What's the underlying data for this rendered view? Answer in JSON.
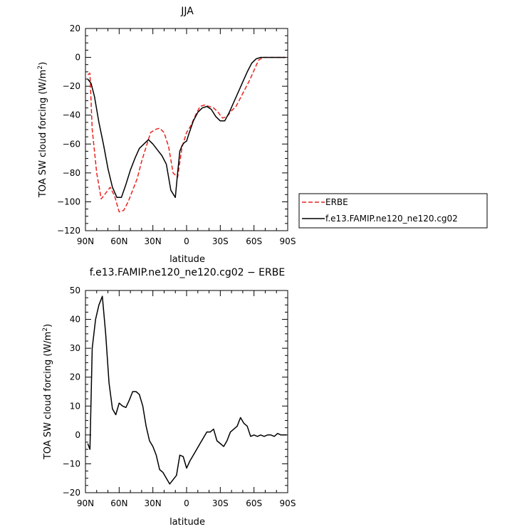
{
  "chart_data": [
    {
      "type": "line",
      "title": "JJA",
      "xlabel": "latitude",
      "ylabel_main": "TOA SW cloud forcing (W/m",
      "ylabel_sup": "2",
      "ylabel_close": ")",
      "xlim": [
        90,
        -90
      ],
      "ylim": [
        -120,
        20
      ],
      "xticks": [
        90,
        60,
        30,
        0,
        -30,
        -60,
        -90
      ],
      "xtick_labels": [
        "90N",
        "60N",
        "30N",
        "0",
        "30S",
        "60S",
        "90S"
      ],
      "yticks": [
        20,
        0,
        -20,
        -40,
        -60,
        -80,
        -100,
        -120
      ],
      "ytick_labels": [
        "20",
        "0",
        "−20",
        "−40",
        "−60",
        "−80",
        "−100",
        "−120"
      ],
      "legend_position": "right",
      "series": [
        {
          "name": "ERBE",
          "color": "#e8231e",
          "style": "dashed",
          "x": [
            88,
            86,
            84,
            80,
            76,
            72,
            68,
            64,
            60,
            56,
            52,
            48,
            44,
            40,
            36,
            32,
            28,
            24,
            20,
            16,
            12,
            8,
            4,
            0,
            -4,
            -8,
            -12,
            -16,
            -20,
            -24,
            -28,
            -32,
            -36,
            -40,
            -44,
            -48,
            -52,
            -56,
            -60,
            -64,
            -68,
            -72,
            -76,
            -80,
            -84,
            -88
          ],
          "y": [
            -12,
            -11,
            -50,
            -80,
            -98,
            -94,
            -90,
            -96,
            -107,
            -106,
            -100,
            -92,
            -84,
            -72,
            -62,
            -52,
            -50,
            -49,
            -52,
            -62,
            -80,
            -83,
            -62,
            -52,
            -47,
            -40,
            -34,
            -33,
            -34,
            -35,
            -38,
            -42,
            -41,
            -37,
            -34,
            -28,
            -22,
            -16,
            -9,
            -2,
            0,
            0,
            0,
            0,
            0,
            0
          ]
        },
        {
          "name": "f.e13.FAMIP.ne120_ne120.cg02",
          "color": "#000000",
          "style": "solid",
          "x": [
            88,
            85,
            82,
            78,
            74,
            70,
            66,
            62,
            58,
            54,
            50,
            46,
            42,
            38,
            34,
            30,
            26,
            22,
            18,
            14,
            10,
            8,
            6,
            4,
            2,
            0,
            -2,
            -6,
            -10,
            -14,
            -18,
            -22,
            -26,
            -30,
            -34,
            -38,
            -42,
            -46,
            -50,
            -54,
            -58,
            -62,
            -66,
            -70,
            -74,
            -78,
            -82,
            -86,
            -88
          ],
          "y": [
            -15,
            -18,
            -27,
            -45,
            -60,
            -77,
            -90,
            -97,
            -97,
            -88,
            -78,
            -70,
            -63,
            -60,
            -57,
            -60,
            -64,
            -68,
            -74,
            -92,
            -97,
            -80,
            -65,
            -61,
            -59,
            -58,
            -53,
            -44,
            -38,
            -35,
            -34,
            -36,
            -41,
            -44,
            -44,
            -38,
            -31,
            -24,
            -17,
            -10,
            -4,
            -1,
            0,
            0,
            0,
            0,
            0,
            0,
            0
          ]
        }
      ]
    },
    {
      "type": "line",
      "title": "f.e13.FAMIP.ne120_ne120.cg02 − ERBE",
      "xlabel": "latitude",
      "ylabel_main": "TOA SW cloud forcing (W/m",
      "ylabel_sup": "2",
      "ylabel_close": ")",
      "xlim": [
        90,
        -90
      ],
      "ylim": [
        -20,
        50
      ],
      "xticks": [
        90,
        60,
        30,
        0,
        -30,
        -60,
        -90
      ],
      "xtick_labels": [
        "90N",
        "60N",
        "30N",
        "0",
        "30S",
        "60S",
        "90S"
      ],
      "yticks": [
        50,
        40,
        30,
        20,
        10,
        0,
        -10,
        -20
      ],
      "ytick_labels": [
        "50",
        "40",
        "30",
        "20",
        "10",
        "0",
        "−10",
        "−20"
      ],
      "series": [
        {
          "name": "",
          "color": "#000000",
          "style": "solid",
          "x": [
            88,
            86,
            84,
            81,
            78,
            75,
            72,
            69,
            66,
            63,
            60,
            57,
            54,
            51,
            48,
            45,
            42,
            39,
            36,
            33,
            30,
            27,
            24,
            21,
            18,
            15,
            12,
            9,
            6,
            3,
            0,
            -3,
            -6,
            -9,
            -12,
            -15,
            -18,
            -21,
            -24,
            -27,
            -30,
            -33,
            -36,
            -39,
            -42,
            -45,
            -48,
            -51,
            -54,
            -57,
            -60,
            -63,
            -66,
            -69,
            -72,
            -75,
            -78,
            -81,
            -84,
            -87,
            -89
          ],
          "y": [
            -3,
            -5,
            30,
            40,
            45,
            48,
            35,
            18,
            9,
            7,
            11,
            10,
            9.5,
            12,
            15,
            15,
            14,
            10,
            3,
            -2,
            -4,
            -7,
            -12,
            -13,
            -15,
            -17,
            -15.5,
            -14,
            -7,
            -7.5,
            -11.5,
            -9,
            -7,
            -5,
            -3,
            -1,
            1,
            1,
            2,
            -2,
            -3,
            -4,
            -2,
            1,
            2,
            3,
            6,
            4,
            3,
            -0.5,
            0,
            -0.5,
            0,
            -0.5,
            0,
            0,
            -0.5,
            0.5,
            0,
            0,
            0
          ]
        }
      ]
    }
  ]
}
